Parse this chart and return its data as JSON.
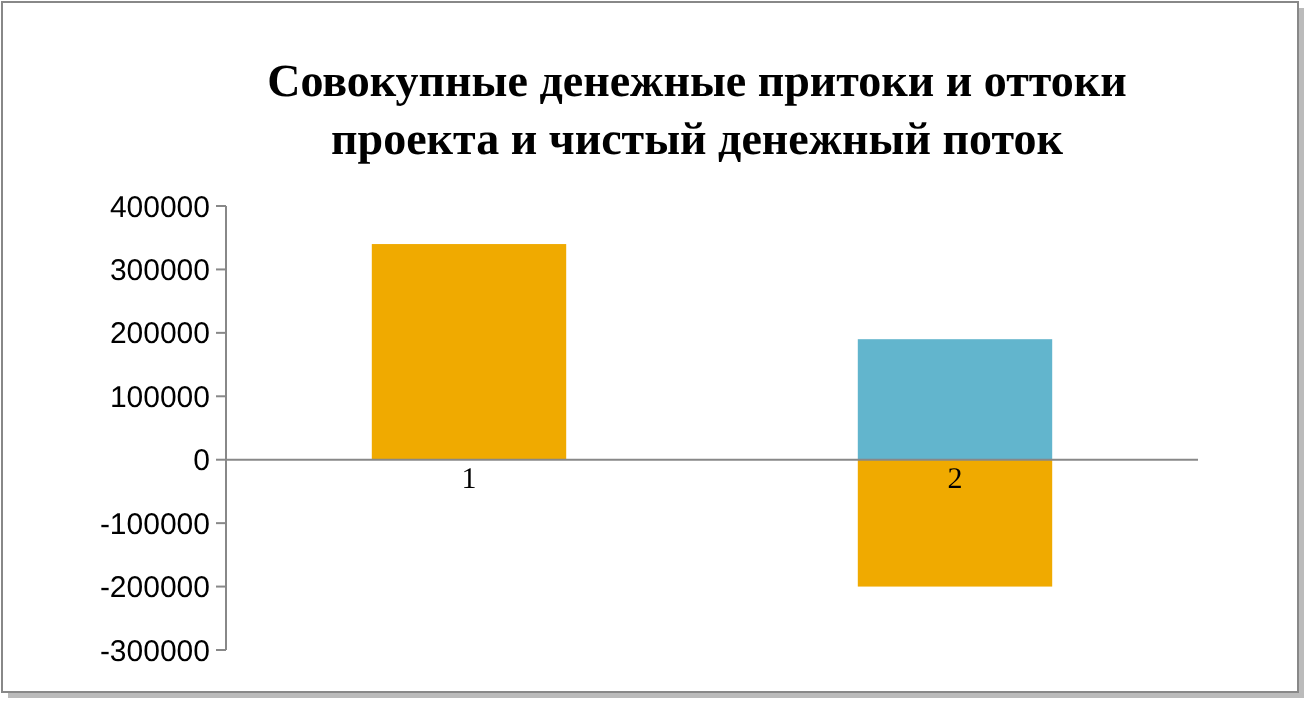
{
  "chart_data": {
    "type": "bar",
    "title": "Совокупные денежные притоки и оттоки проекта и чистый денежный поток",
    "categories": [
      "1",
      "2"
    ],
    "stacked": true,
    "series": [
      {
        "color": "#f0aa00",
        "values": [
          340000,
          -200000
        ]
      },
      {
        "color": "#62b5cd",
        "values": [
          null,
          190000
        ]
      }
    ],
    "ylim": [
      -300000,
      400000
    ],
    "yticks": [
      -300000,
      -200000,
      -100000,
      0,
      100000,
      200000,
      300000,
      400000
    ],
    "grid": false
  }
}
